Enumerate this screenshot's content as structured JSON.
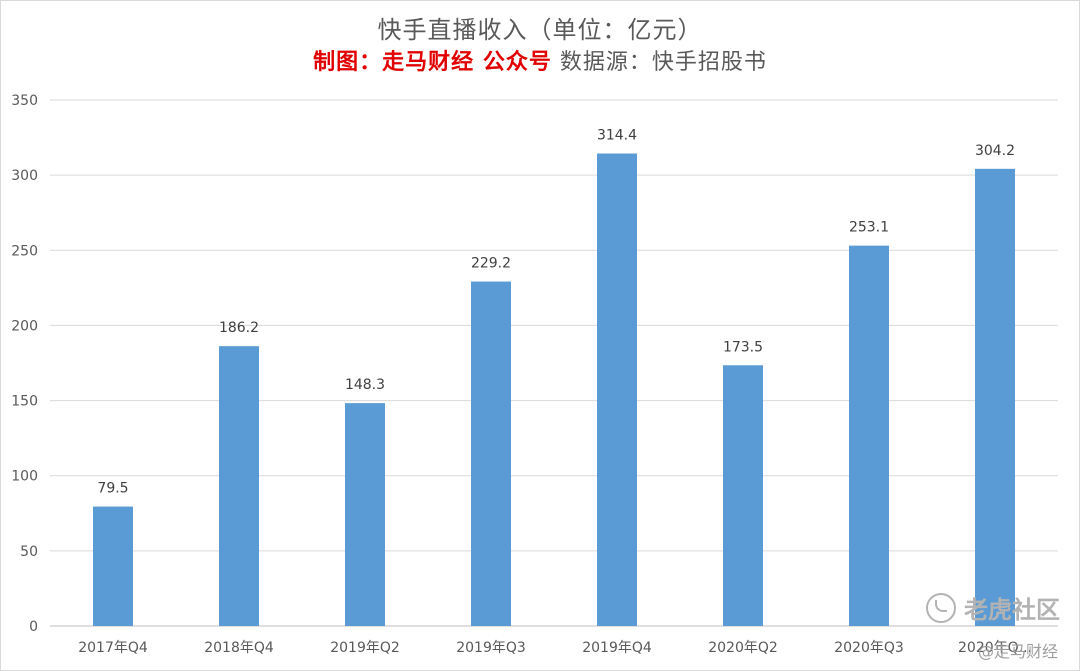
{
  "chart_data": {
    "type": "bar",
    "title": "快手直播收入（单位：亿元）",
    "subtitle_red": "制图：走马财经 公众号",
    "subtitle_gray": "数据源：快手招股书",
    "categories": [
      "2017年Q4",
      "2018年Q4",
      "2019年Q2",
      "2019年Q3",
      "2019年Q4",
      "2020年Q2",
      "2020年Q3",
      "2020年Q..."
    ],
    "values": [
      79.5,
      186.2,
      148.3,
      229.2,
      314.4,
      173.5,
      253.1,
      304.2
    ],
    "value_labels": [
      "79.5",
      "186.2",
      "148.3",
      "229.2",
      "314.4",
      "173.5",
      "253.1",
      "304.2"
    ],
    "ylim": [
      0,
      350
    ],
    "yticks": [
      0,
      50,
      100,
      150,
      200,
      250,
      300,
      350
    ],
    "grid": true,
    "legend": "none",
    "bar_color": "#5b9bd5",
    "grid_color": "#d9d9d9"
  },
  "watermark": {
    "primary": "老虎社区",
    "secondary": "@走马财经"
  }
}
